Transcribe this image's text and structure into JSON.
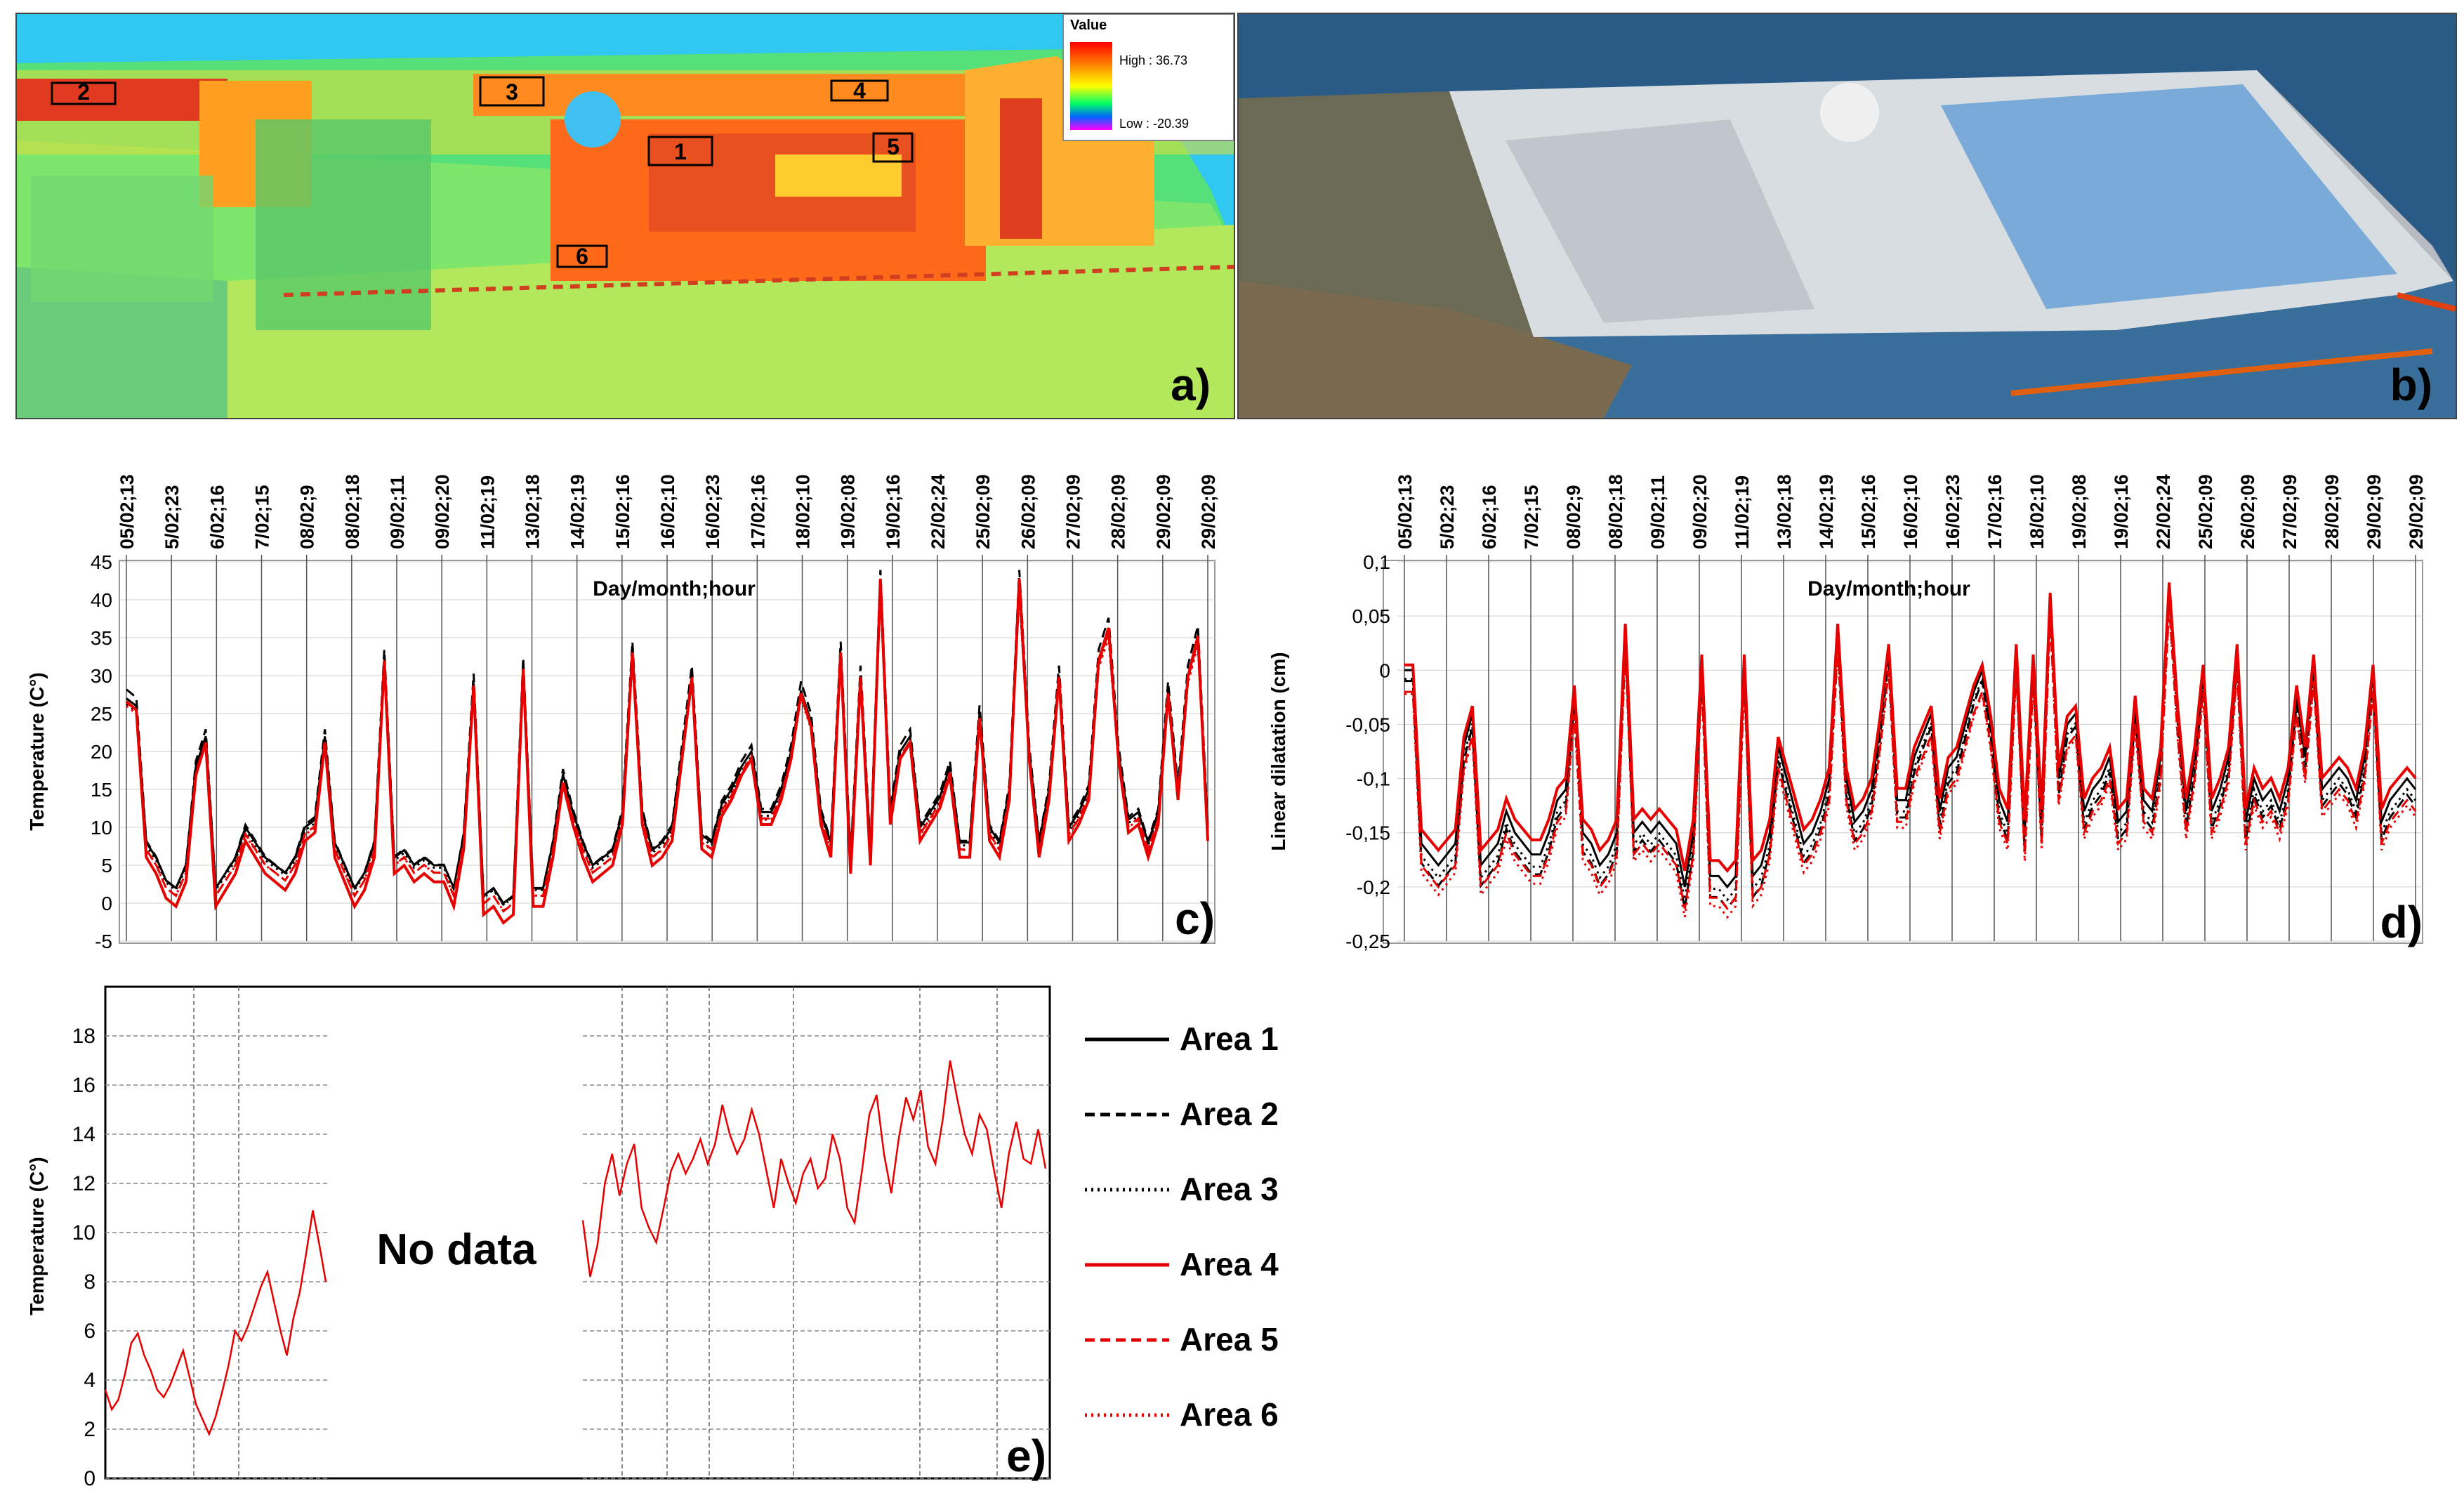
{
  "thermal_panel": {
    "legend_title": "Value",
    "high_label": "High : 36.73",
    "low_label": "Low : -20.39",
    "area_boxes": [
      "1",
      "2",
      "3",
      "4",
      "5",
      "6"
    ],
    "panel_label": "a)"
  },
  "photo_panel": {
    "panel_label": "b)"
  },
  "legend": {
    "entries": [
      {
        "name": "Area 1",
        "color": "#000000",
        "dash": "solid"
      },
      {
        "name": "Area 2",
        "color": "#000000",
        "dash": "dashed"
      },
      {
        "name": "Area 3",
        "color": "#000000",
        "dash": "dotted"
      },
      {
        "name": "Area 4",
        "color": "#e60000",
        "dash": "solid"
      },
      {
        "name": "Area 5",
        "color": "#e60000",
        "dash": "dashed"
      },
      {
        "name": "Area 6",
        "color": "#e60000",
        "dash": "dotted"
      }
    ]
  },
  "no_data_label": "No data",
  "chart_data": [
    {
      "type": "line",
      "panel_label": "c)",
      "title": "Day/month;hour",
      "ylabel": "Temperature (C°)",
      "ylim": [
        -5,
        45
      ],
      "yticks": [
        -5,
        0,
        5,
        10,
        15,
        20,
        25,
        30,
        35,
        40,
        45
      ],
      "x_tick_labels": [
        "05/02;13",
        "5/02;23",
        "6/02;16",
        "7/02;15",
        "08/02;9",
        "08/02;18",
        "09/02;11",
        "09/02;20",
        "11/02;19",
        "13/02;18",
        "14/02;19",
        "15/02;16",
        "16/02;10",
        "16/02;23",
        "17/02;16",
        "18/02;10",
        "19/02;08",
        "19/02;16",
        "22/02;24",
        "25/02;09",
        "26/02;09",
        "27/02;09",
        "28/02;09",
        "29/02;09",
        "29/02;09"
      ],
      "n_points": 120,
      "base_series": [
        27,
        26,
        8,
        6,
        3,
        2,
        5,
        18,
        22,
        2,
        4,
        6,
        10,
        8,
        6,
        5,
        4,
        6,
        10,
        11,
        22,
        8,
        5,
        2,
        4,
        8,
        32,
        6,
        7,
        5,
        6,
        5,
        5,
        2,
        9,
        29,
        1,
        2,
        0,
        1,
        31,
        2,
        2,
        8,
        17,
        12,
        8,
        5,
        6,
        7,
        12,
        33,
        12,
        7,
        8,
        10,
        20,
        30,
        9,
        8,
        13,
        15,
        18,
        20,
        12,
        12,
        15,
        20,
        28,
        24,
        12,
        8,
        33,
        6,
        30,
        7,
        42,
        12,
        20,
        22,
        10,
        12,
        14,
        18,
        8,
        8,
        25,
        10,
        8,
        15,
        42,
        20,
        8,
        15,
        30,
        10,
        12,
        15,
        32,
        36,
        20,
        11,
        12,
        8,
        12,
        28,
        15,
        30,
        35,
        10
      ],
      "series": [
        {
          "name": "Area 1",
          "offset": 0,
          "amp": 1.0
        },
        {
          "name": "Area 2",
          "offset": 0.5,
          "amp": 1.05
        },
        {
          "name": "Area 3",
          "offset": -0.5,
          "amp": 0.98
        },
        {
          "name": "Area 4",
          "offset": -1.5,
          "amp": 1.08
        },
        {
          "name": "Area 5",
          "offset": -0.8,
          "amp": 1.02
        },
        {
          "name": "Area 6",
          "offset": -1.0,
          "amp": 1.0
        }
      ]
    },
    {
      "type": "line",
      "panel_label": "d)",
      "title": "Day/month;hour",
      "ylabel": "Linear dilatation (cm)",
      "ylim": [
        -0.25,
        0.1
      ],
      "yticks": [
        "0,1",
        "0,05",
        "0",
        "-0,05",
        "-0,1",
        "-0,15",
        "-0,2",
        "-0,25"
      ],
      "ytick_values": [
        0.1,
        0.05,
        0,
        -0.05,
        -0.1,
        -0.15,
        -0.2,
        -0.25
      ],
      "x_tick_labels": [
        "05/02;13",
        "5/02;23",
        "6/02;16",
        "7/02;15",
        "08/02;9",
        "08/02;18",
        "09/02;11",
        "09/02;20",
        "11/02;19",
        "13/02;18",
        "14/02;19",
        "15/02;16",
        "16/02;10",
        "16/02;23",
        "17/02;16",
        "18/02;10",
        "19/02;08",
        "19/02;16",
        "22/02;24",
        "25/02;09",
        "26/02;09",
        "27/02;09",
        "28/02;09",
        "29/02;09",
        "29/02;09"
      ],
      "n_points": 120,
      "base_series": [
        0,
        0,
        -0.16,
        -0.17,
        -0.18,
        -0.17,
        -0.16,
        -0.07,
        -0.04,
        -0.18,
        -0.17,
        -0.16,
        -0.13,
        -0.15,
        -0.16,
        -0.17,
        -0.17,
        -0.15,
        -0.12,
        -0.11,
        -0.02,
        -0.15,
        -0.16,
        -0.18,
        -0.17,
        -0.15,
        0.04,
        -0.15,
        -0.14,
        -0.15,
        -0.14,
        -0.15,
        -0.16,
        -0.2,
        -0.15,
        0.01,
        -0.19,
        -0.19,
        -0.2,
        -0.19,
        0.01,
        -0.19,
        -0.18,
        -0.15,
        -0.07,
        -0.1,
        -0.13,
        -0.16,
        -0.15,
        -0.13,
        -0.1,
        0.04,
        -0.1,
        -0.14,
        -0.13,
        -0.11,
        -0.05,
        0.02,
        -0.12,
        -0.12,
        -0.08,
        -0.06,
        -0.04,
        -0.13,
        -0.09,
        -0.08,
        -0.05,
        -0.02,
        0.0,
        -0.05,
        -0.12,
        -0.14,
        0.02,
        -0.15,
        0.01,
        -0.14,
        0.07,
        -0.1,
        -0.05,
        -0.04,
        -0.13,
        -0.11,
        -0.1,
        -0.08,
        -0.14,
        -0.13,
        -0.03,
        -0.12,
        -0.13,
        -0.08,
        0.08,
        -0.04,
        -0.13,
        -0.08,
        0.0,
        -0.13,
        -0.11,
        -0.08,
        0.02,
        -0.14,
        -0.1,
        -0.12,
        -0.11,
        -0.13,
        -0.1,
        -0.02,
        -0.08,
        0.01,
        -0.11,
        -0.1,
        -0.09,
        -0.1,
        -0.12,
        -0.08,
        0.0,
        -0.14,
        -0.12,
        -0.11,
        -0.1,
        -0.11
      ],
      "series": [
        {
          "name": "Area 1",
          "offset": 0,
          "amp": 1.0
        },
        {
          "name": "Area 2",
          "offset": -0.015,
          "amp": 1.05
        },
        {
          "name": "Area 3",
          "offset": -0.01,
          "amp": 1.02
        },
        {
          "name": "Area 4",
          "offset": 0.01,
          "amp": 0.95
        },
        {
          "name": "Area 5",
          "offset": -0.02,
          "amp": 1.0
        },
        {
          "name": "Area 6",
          "offset": -0.025,
          "amp": 1.03
        }
      ]
    },
    {
      "type": "line",
      "panel_label": "e)",
      "ylabel": "Temperature (C°)",
      "ylim": [
        0,
        20
      ],
      "yticks": [
        0,
        2,
        4,
        6,
        8,
        10,
        12,
        14,
        16,
        18
      ],
      "segment1": [
        3.6,
        2.8,
        3.2,
        4.2,
        5.5,
        5.9,
        5.0,
        4.4,
        3.6,
        3.3,
        3.8,
        4.5,
        5.2,
        4.1,
        3.0,
        2.4,
        1.8,
        2.5,
        3.5,
        4.6,
        6.0,
        5.6,
        6.2,
        7.0,
        7.8,
        8.4,
        7.2,
        6.0,
        5.0,
        6.5,
        7.6,
        9.2,
        10.9,
        9.5,
        8.0
      ],
      "segment2": [
        10.5,
        8.2,
        9.5,
        12.0,
        13.2,
        11.5,
        12.8,
        13.6,
        11.0,
        10.2,
        9.6,
        11.0,
        12.5,
        13.2,
        12.4,
        13.0,
        13.8,
        12.8,
        13.6,
        15.2,
        14.0,
        13.2,
        13.8,
        15.0,
        14.0,
        12.5,
        11.0,
        13.0,
        12.0,
        11.2,
        12.4,
        13.0,
        11.8,
        12.2,
        14.0,
        13.0,
        11.0,
        10.4,
        12.5,
        14.8,
        15.6,
        13.2,
        11.6,
        13.8,
        15.5,
        14.6,
        15.8,
        13.5,
        12.8,
        14.6,
        17.0,
        15.4,
        14.0,
        13.2,
        14.8,
        14.2,
        12.5,
        11.0,
        13.2,
        14.5,
        13.0,
        12.8,
        14.2,
        12.6
      ]
    }
  ]
}
